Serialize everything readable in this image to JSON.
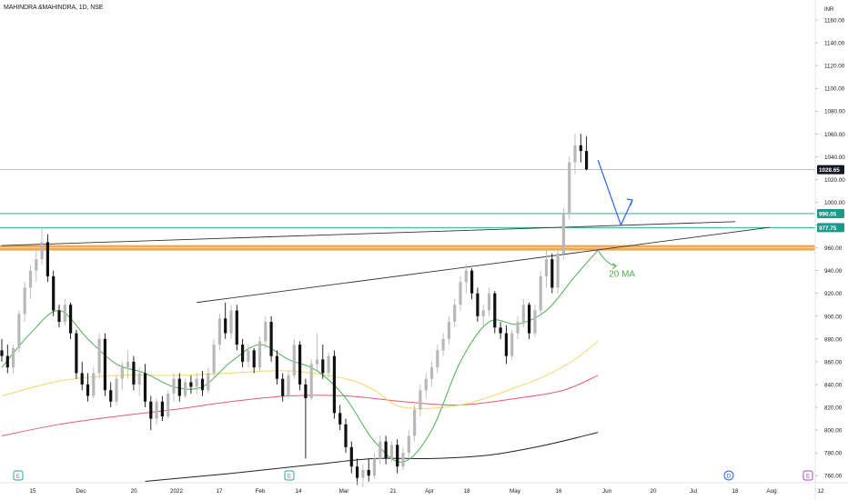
{
  "header": {
    "title": "MAHINDRA &MAHINDRA, 1D, NSE"
  },
  "colors": {
    "up": "#b8b8b8",
    "down": "#111111",
    "ma20": "#4caf50",
    "ma_yellow": "#f2d56b",
    "ma_red": "#e35d6a",
    "ma_black": "#222222",
    "level_teal": "#1a9a8a",
    "level_orange": "#f7a23c",
    "trend": "#333333",
    "arrow_blue": "#2962ff",
    "last_bg": "#131722",
    "level_label_bg": "#1a9a8a"
  },
  "chart_data": {
    "type": "candlestick",
    "currency": "INR",
    "y_ticks": [
      "1160.00",
      "1140.00",
      "1120.00",
      "1100.00",
      "1080.00",
      "1060.00",
      "1040.00",
      "1020.00",
      "1000.00",
      "980.00",
      "960.00",
      "940.00",
      "920.00",
      "900.00",
      "880.00",
      "860.00",
      "840.00",
      "820.00",
      "800.00",
      "780.00",
      "760.00"
    ],
    "ylim": [
      755,
      1165
    ],
    "x_tick_labels": [
      "15",
      "Dec",
      "20",
      "2022",
      "17",
      "Feb",
      "14",
      "Mar",
      "21",
      "Apr",
      "18",
      "May",
      "16",
      "Jun",
      "20",
      "Jul",
      "18",
      "Aug",
      "12"
    ],
    "last_price": "1028.65",
    "levels": [
      {
        "value": 990.05,
        "label": "990.05",
        "color": "teal"
      },
      {
        "value": 977.75,
        "label": "977.75",
        "color": "teal"
      },
      {
        "value": 960,
        "label": "",
        "color": "orange"
      }
    ],
    "annotation": "20 MA",
    "event_icons": [
      "E",
      "E",
      "D",
      "E"
    ],
    "candles": [
      {
        "o": 870,
        "h": 880,
        "l": 860,
        "c": 865
      },
      {
        "o": 865,
        "h": 875,
        "l": 850,
        "c": 855
      },
      {
        "o": 855,
        "h": 875,
        "l": 850,
        "c": 872
      },
      {
        "o": 872,
        "h": 905,
        "l": 868,
        "c": 902
      },
      {
        "o": 902,
        "h": 930,
        "l": 895,
        "c": 925
      },
      {
        "o": 925,
        "h": 945,
        "l": 915,
        "c": 940
      },
      {
        "o": 940,
        "h": 958,
        "l": 930,
        "c": 950
      },
      {
        "o": 950,
        "h": 978,
        "l": 945,
        "c": 965
      },
      {
        "o": 965,
        "h": 972,
        "l": 930,
        "c": 935
      },
      {
        "o": 935,
        "h": 940,
        "l": 900,
        "c": 905
      },
      {
        "o": 905,
        "h": 910,
        "l": 890,
        "c": 895
      },
      {
        "o": 895,
        "h": 915,
        "l": 892,
        "c": 910
      },
      {
        "o": 910,
        "h": 912,
        "l": 880,
        "c": 885
      },
      {
        "o": 885,
        "h": 888,
        "l": 845,
        "c": 850
      },
      {
        "o": 850,
        "h": 860,
        "l": 835,
        "c": 840
      },
      {
        "o": 840,
        "h": 850,
        "l": 825,
        "c": 830
      },
      {
        "o": 830,
        "h": 855,
        "l": 828,
        "c": 850
      },
      {
        "o": 850,
        "h": 885,
        "l": 845,
        "c": 880
      },
      {
        "o": 880,
        "h": 885,
        "l": 830,
        "c": 835
      },
      {
        "o": 835,
        "h": 842,
        "l": 820,
        "c": 825
      },
      {
        "o": 825,
        "h": 848,
        "l": 822,
        "c": 845
      },
      {
        "o": 845,
        "h": 860,
        "l": 835,
        "c": 855
      },
      {
        "o": 855,
        "h": 870,
        "l": 845,
        "c": 860
      },
      {
        "o": 860,
        "h": 865,
        "l": 835,
        "c": 840
      },
      {
        "o": 840,
        "h": 855,
        "l": 830,
        "c": 850
      },
      {
        "o": 850,
        "h": 858,
        "l": 820,
        "c": 825
      },
      {
        "o": 825,
        "h": 830,
        "l": 800,
        "c": 810
      },
      {
        "o": 810,
        "h": 828,
        "l": 805,
        "c": 825
      },
      {
        "o": 825,
        "h": 830,
        "l": 808,
        "c": 812
      },
      {
        "o": 812,
        "h": 835,
        "l": 810,
        "c": 832
      },
      {
        "o": 832,
        "h": 850,
        "l": 825,
        "c": 845
      },
      {
        "o": 845,
        "h": 850,
        "l": 825,
        "c": 830
      },
      {
        "o": 830,
        "h": 845,
        "l": 828,
        "c": 842
      },
      {
        "o": 842,
        "h": 848,
        "l": 832,
        "c": 838
      },
      {
        "o": 838,
        "h": 850,
        "l": 832,
        "c": 845
      },
      {
        "o": 845,
        "h": 852,
        "l": 830,
        "c": 835
      },
      {
        "o": 835,
        "h": 855,
        "l": 832,
        "c": 850
      },
      {
        "o": 850,
        "h": 880,
        "l": 845,
        "c": 875
      },
      {
        "o": 875,
        "h": 902,
        "l": 870,
        "c": 898
      },
      {
        "o": 898,
        "h": 912,
        "l": 880,
        "c": 885
      },
      {
        "o": 885,
        "h": 910,
        "l": 880,
        "c": 905
      },
      {
        "o": 905,
        "h": 910,
        "l": 870,
        "c": 875
      },
      {
        "o": 875,
        "h": 880,
        "l": 855,
        "c": 860
      },
      {
        "o": 860,
        "h": 875,
        "l": 855,
        "c": 870
      },
      {
        "o": 870,
        "h": 872,
        "l": 850,
        "c": 855
      },
      {
        "o": 855,
        "h": 882,
        "l": 852,
        "c": 878
      },
      {
        "o": 878,
        "h": 900,
        "l": 872,
        "c": 895
      },
      {
        "o": 895,
        "h": 900,
        "l": 860,
        "c": 865
      },
      {
        "o": 865,
        "h": 870,
        "l": 840,
        "c": 845
      },
      {
        "o": 845,
        "h": 850,
        "l": 825,
        "c": 830
      },
      {
        "o": 830,
        "h": 852,
        "l": 828,
        "c": 848
      },
      {
        "o": 848,
        "h": 880,
        "l": 845,
        "c": 875
      },
      {
        "o": 875,
        "h": 878,
        "l": 835,
        "c": 840
      },
      {
        "o": 840,
        "h": 845,
        "l": 775,
        "c": 828
      },
      {
        "o": 828,
        "h": 862,
        "l": 826,
        "c": 858
      },
      {
        "o": 858,
        "h": 885,
        "l": 852,
        "c": 862
      },
      {
        "o": 862,
        "h": 875,
        "l": 845,
        "c": 850
      },
      {
        "o": 850,
        "h": 868,
        "l": 846,
        "c": 865
      },
      {
        "o": 865,
        "h": 870,
        "l": 810,
        "c": 815
      },
      {
        "o": 815,
        "h": 822,
        "l": 800,
        "c": 805
      },
      {
        "o": 805,
        "h": 810,
        "l": 780,
        "c": 785
      },
      {
        "o": 785,
        "h": 790,
        "l": 762,
        "c": 768
      },
      {
        "o": 768,
        "h": 775,
        "l": 752,
        "c": 758
      },
      {
        "o": 758,
        "h": 770,
        "l": 750,
        "c": 765
      },
      {
        "o": 765,
        "h": 775,
        "l": 755,
        "c": 760
      },
      {
        "o": 760,
        "h": 780,
        "l": 757,
        "c": 775
      },
      {
        "o": 775,
        "h": 795,
        "l": 770,
        "c": 790
      },
      {
        "o": 790,
        "h": 795,
        "l": 770,
        "c": 775
      },
      {
        "o": 775,
        "h": 790,
        "l": 772,
        "c": 787
      },
      {
        "o": 787,
        "h": 792,
        "l": 762,
        "c": 768
      },
      {
        "o": 768,
        "h": 785,
        "l": 765,
        "c": 780
      },
      {
        "o": 780,
        "h": 800,
        "l": 776,
        "c": 795
      },
      {
        "o": 795,
        "h": 822,
        "l": 790,
        "c": 818
      },
      {
        "o": 818,
        "h": 840,
        "l": 812,
        "c": 835
      },
      {
        "o": 835,
        "h": 850,
        "l": 828,
        "c": 845
      },
      {
        "o": 845,
        "h": 860,
        "l": 838,
        "c": 855
      },
      {
        "o": 855,
        "h": 875,
        "l": 850,
        "c": 870
      },
      {
        "o": 870,
        "h": 885,
        "l": 865,
        "c": 880
      },
      {
        "o": 880,
        "h": 900,
        "l": 875,
        "c": 895
      },
      {
        "o": 895,
        "h": 915,
        "l": 890,
        "c": 910
      },
      {
        "o": 910,
        "h": 935,
        "l": 905,
        "c": 930
      },
      {
        "o": 930,
        "h": 945,
        "l": 920,
        "c": 940
      },
      {
        "o": 940,
        "h": 942,
        "l": 915,
        "c": 920
      },
      {
        "o": 920,
        "h": 925,
        "l": 895,
        "c": 900
      },
      {
        "o": 900,
        "h": 910,
        "l": 890,
        "c": 905
      },
      {
        "o": 905,
        "h": 925,
        "l": 900,
        "c": 920
      },
      {
        "o": 920,
        "h": 922,
        "l": 885,
        "c": 890
      },
      {
        "o": 890,
        "h": 895,
        "l": 880,
        "c": 885
      },
      {
        "o": 885,
        "h": 892,
        "l": 858,
        "c": 865
      },
      {
        "o": 865,
        "h": 888,
        "l": 862,
        "c": 885
      },
      {
        "o": 885,
        "h": 900,
        "l": 880,
        "c": 895
      },
      {
        "o": 895,
        "h": 915,
        "l": 890,
        "c": 910
      },
      {
        "o": 910,
        "h": 912,
        "l": 880,
        "c": 885
      },
      {
        "o": 885,
        "h": 910,
        "l": 882,
        "c": 905
      },
      {
        "o": 905,
        "h": 940,
        "l": 900,
        "c": 935
      },
      {
        "o": 935,
        "h": 958,
        "l": 925,
        "c": 950
      },
      {
        "o": 950,
        "h": 955,
        "l": 920,
        "c": 925
      },
      {
        "o": 925,
        "h": 960,
        "l": 920,
        "c": 955
      },
      {
        "o": 955,
        "h": 995,
        "l": 950,
        "c": 990
      },
      {
        "o": 990,
        "h": 1040,
        "l": 985,
        "c": 1035
      },
      {
        "o": 1035,
        "h": 1060,
        "l": 1025,
        "c": 1050
      },
      {
        "o": 1050,
        "h": 1060,
        "l": 1035,
        "c": 1045
      },
      {
        "o": 1045,
        "h": 1058,
        "l": 1028,
        "c": 1029
      }
    ],
    "ma20": [
      {
        "i": 0,
        "v": 855
      },
      {
        "i": 5,
        "v": 885
      },
      {
        "i": 10,
        "v": 905
      },
      {
        "i": 15,
        "v": 880
      },
      {
        "i": 20,
        "v": 858
      },
      {
        "i": 25,
        "v": 850
      },
      {
        "i": 30,
        "v": 838
      },
      {
        "i": 35,
        "v": 838
      },
      {
        "i": 40,
        "v": 860
      },
      {
        "i": 45,
        "v": 875
      },
      {
        "i": 50,
        "v": 862
      },
      {
        "i": 55,
        "v": 852
      },
      {
        "i": 60,
        "v": 828
      },
      {
        "i": 65,
        "v": 790
      },
      {
        "i": 70,
        "v": 772
      },
      {
        "i": 75,
        "v": 800
      },
      {
        "i": 80,
        "v": 860
      },
      {
        "i": 85,
        "v": 895
      },
      {
        "i": 90,
        "v": 893
      },
      {
        "i": 95,
        "v": 905
      },
      {
        "i": 100,
        "v": 935
      },
      {
        "i": 104,
        "v": 958
      }
    ],
    "ma_yellow": [
      {
        "i": 0,
        "v": 830
      },
      {
        "i": 10,
        "v": 843
      },
      {
        "i": 20,
        "v": 848
      },
      {
        "i": 30,
        "v": 848
      },
      {
        "i": 40,
        "v": 850
      },
      {
        "i": 50,
        "v": 852
      },
      {
        "i": 60,
        "v": 845
      },
      {
        "i": 65,
        "v": 835
      },
      {
        "i": 70,
        "v": 820
      },
      {
        "i": 80,
        "v": 822
      },
      {
        "i": 90,
        "v": 838
      },
      {
        "i": 95,
        "v": 848
      },
      {
        "i": 100,
        "v": 862
      },
      {
        "i": 104,
        "v": 878
      }
    ],
    "ma_red": [
      {
        "i": 0,
        "v": 795
      },
      {
        "i": 10,
        "v": 805
      },
      {
        "i": 20,
        "v": 812
      },
      {
        "i": 30,
        "v": 818
      },
      {
        "i": 40,
        "v": 825
      },
      {
        "i": 50,
        "v": 830
      },
      {
        "i": 60,
        "v": 830
      },
      {
        "i": 70,
        "v": 825
      },
      {
        "i": 80,
        "v": 822
      },
      {
        "i": 90,
        "v": 828
      },
      {
        "i": 98,
        "v": 835
      },
      {
        "i": 104,
        "v": 848
      }
    ],
    "ma_black": [
      {
        "i": 25,
        "v": 755
      },
      {
        "i": 40,
        "v": 762
      },
      {
        "i": 55,
        "v": 770
      },
      {
        "i": 65,
        "v": 775
      },
      {
        "i": 75,
        "v": 775
      },
      {
        "i": 85,
        "v": 778
      },
      {
        "i": 95,
        "v": 787
      },
      {
        "i": 104,
        "v": 798
      }
    ],
    "trendlines": [
      {
        "from": {
          "i": 0,
          "v": 962
        },
        "to": {
          "i": 128,
          "v": 983
        }
      },
      {
        "from": {
          "i": 34,
          "v": 912
        },
        "to": {
          "i": 134,
          "v": 978
        }
      }
    ],
    "arrow_path": [
      {
        "i": 104,
        "v": 1037
      },
      {
        "i": 108,
        "v": 980
      },
      {
        "i": 110,
        "v": 1002
      }
    ]
  }
}
